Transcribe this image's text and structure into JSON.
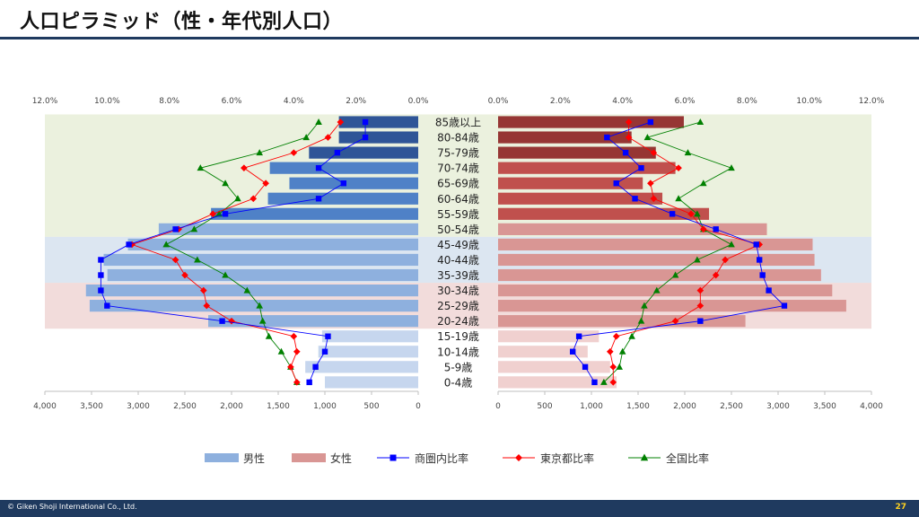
{
  "page": {
    "title": "人口ピラミッド（性・年代別人口）",
    "copyright": "© Giken Shoji International Co., Ltd.",
    "page_number": "27"
  },
  "colors": {
    "male_dark": "#2f5597",
    "male_mid": "#4f81c7",
    "male_light": "#8eb0de",
    "male_pale": "#c6d6ee",
    "female_dark": "#963634",
    "female_mid": "#c0504d",
    "female_light": "#d99694",
    "female_pale": "#f0d0cf",
    "band_old": "#ebf1de",
    "band_middle": "#dce6f1",
    "band_young": "#f2dcdb",
    "shoken": "#0000ff",
    "tokyo": "#ff0000",
    "zenkoku": "#008000",
    "header_bar": "#1f3a5f",
    "page_number": "#ffd21f"
  },
  "chart_data": {
    "type": "bar",
    "subtype": "population-pyramid",
    "categories": [
      "85歳以上",
      "80-84歳",
      "75-79歳",
      "70-74歳",
      "65-69歳",
      "60-64歳",
      "55-59歳",
      "50-54歳",
      "45-49歳",
      "40-44歳",
      "35-39歳",
      "30-34歳",
      "25-29歳",
      "20-24歳",
      "15-19歳",
      "10-14歳",
      "5-9歳",
      "0-4歳"
    ],
    "population_axis": {
      "ticks": [
        "4,000",
        "3,500",
        "3,000",
        "2,500",
        "2,000",
        "1,500",
        "1,000",
        "500",
        "0"
      ],
      "range": [
        0,
        4000
      ]
    },
    "ratio_axis": {
      "ticks": [
        "12.0%",
        "10.0%",
        "8.0%",
        "6.0%",
        "4.0%",
        "2.0%",
        "0.0%"
      ],
      "range": [
        0,
        12
      ]
    },
    "male": {
      "name": "男性",
      "population": [
        850,
        850,
        1170,
        1590,
        1380,
        1610,
        2220,
        2780,
        3110,
        3370,
        3330,
        3560,
        3520,
        2250,
        1030,
        1070,
        1210,
        1000
      ],
      "shoken_ratio": [
        1.7,
        1.7,
        2.6,
        3.2,
        2.4,
        3.2,
        6.2,
        7.8,
        9.3,
        10.2,
        10.2,
        10.2,
        10.0,
        6.3,
        2.9,
        3.0,
        3.3,
        3.5
      ],
      "tokyo_ratio": [
        2.5,
        2.9,
        4.0,
        5.6,
        4.9,
        5.3,
        6.6,
        7.7,
        9.2,
        7.8,
        7.5,
        6.9,
        6.8,
        6.0,
        4.0,
        3.9,
        4.1,
        3.9
      ],
      "zenkoku_ratio": [
        3.2,
        3.6,
        5.1,
        7.0,
        6.2,
        5.8,
        6.4,
        7.2,
        8.1,
        7.1,
        6.2,
        5.5,
        5.1,
        5.0,
        4.8,
        4.4,
        4.1,
        3.9
      ]
    },
    "female": {
      "name": "女性",
      "population": [
        1990,
        1430,
        1690,
        1900,
        1550,
        1760,
        2260,
        2880,
        3370,
        3390,
        3460,
        3580,
        3730,
        2650,
        1080,
        960,
        1200,
        1270
      ],
      "shoken_ratio": [
        4.9,
        3.5,
        4.1,
        4.6,
        3.8,
        4.4,
        5.6,
        7.0,
        8.3,
        8.4,
        8.5,
        8.7,
        9.2,
        6.5,
        2.6,
        2.4,
        2.8,
        3.1
      ],
      "tokyo_ratio": [
        4.2,
        4.2,
        5.0,
        5.8,
        4.9,
        5.0,
        6.2,
        6.6,
        8.4,
        7.3,
        7.0,
        6.5,
        6.5,
        5.7,
        3.8,
        3.6,
        3.7,
        3.7
      ],
      "zenkoku_ratio": [
        6.5,
        4.8,
        6.1,
        7.5,
        6.6,
        5.8,
        6.4,
        6.6,
        7.5,
        6.4,
        5.7,
        5.1,
        4.7,
        4.6,
        4.3,
        4.0,
        3.9,
        3.4
      ]
    },
    "bands": [
      {
        "from": 0,
        "to": 7,
        "color": "band_old"
      },
      {
        "from": 8,
        "to": 10,
        "color": "band_middle"
      },
      {
        "from": 11,
        "to": 13,
        "color": "band_young"
      }
    ],
    "legend": {
      "placement": "bottom",
      "items": [
        "男性",
        "女性",
        "商圏内比率",
        "東京都比率",
        "全国比率"
      ]
    }
  }
}
